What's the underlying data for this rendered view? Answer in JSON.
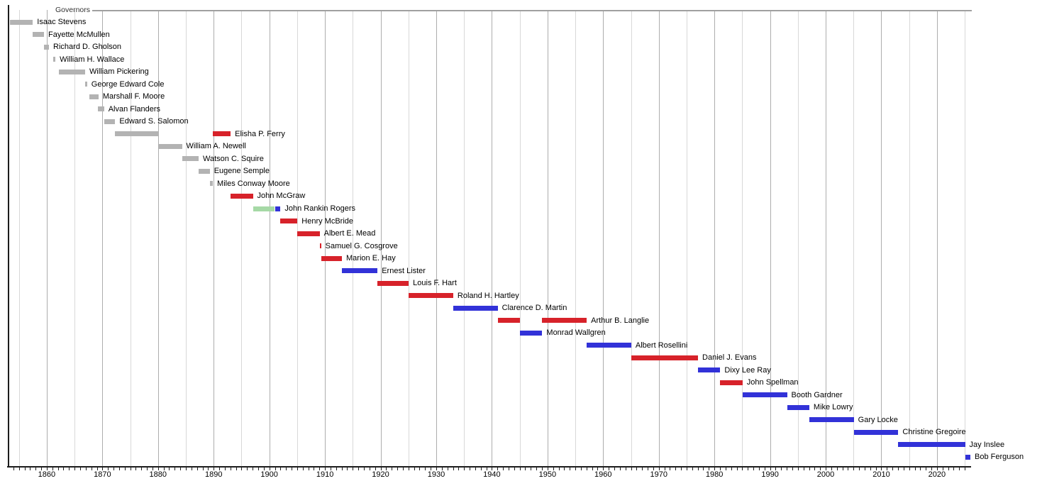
{
  "header": {
    "title": "Governors"
  },
  "chart_data": {
    "type": "timeline",
    "title": "Governors",
    "legend_position": "top-left",
    "grid": "on",
    "axis": {
      "orientation": "horizontal-time",
      "year_start": 1853,
      "year_end": 2026,
      "major_tick_interval": 10,
      "minor_tick_interval": 1,
      "gridline_interval": 5,
      "tick_labels": [
        "1860",
        "1870",
        "1880",
        "1890",
        "1900",
        "1910",
        "1920",
        "1930",
        "1940",
        "1950",
        "1960",
        "1970",
        "1980",
        "1990",
        "2000",
        "2010",
        "2020"
      ]
    },
    "colors": {
      "territorial": "#b3b3b3",
      "republican": "#d7222a",
      "democratic": "#3232d8",
      "populist": "#a6d9a6"
    },
    "governors": [
      {
        "name": "Isaac Stevens",
        "segments": [
          {
            "party": "territorial",
            "start": 1853.4,
            "end": 1857.5
          }
        ]
      },
      {
        "name": "Fayette McMullen",
        "segments": [
          {
            "party": "territorial",
            "start": 1857.5,
            "end": 1859.5
          }
        ]
      },
      {
        "name": "Richard D. Gholson",
        "segments": [
          {
            "party": "territorial",
            "start": 1859.5,
            "end": 1860.4
          }
        ]
      },
      {
        "name": "William H. Wallace",
        "segments": [
          {
            "party": "territorial",
            "start": 1861.15,
            "end": 1861.55
          }
        ]
      },
      {
        "name": "William Pickering",
        "segments": [
          {
            "party": "territorial",
            "start": 1862.2,
            "end": 1866.9
          }
        ]
      },
      {
        "name": "George Edward Cole",
        "segments": [
          {
            "party": "territorial",
            "start": 1866.9,
            "end": 1867.25
          }
        ]
      },
      {
        "name": "Marshall F. Moore",
        "segments": [
          {
            "party": "territorial",
            "start": 1867.6,
            "end": 1869.3
          }
        ]
      },
      {
        "name": "Alvan Flanders",
        "segments": [
          {
            "party": "territorial",
            "start": 1869.2,
            "end": 1870.3
          }
        ]
      },
      {
        "name": "Edward S. Salomon",
        "segments": [
          {
            "party": "territorial",
            "start": 1870.3,
            "end": 1872.3
          }
        ]
      },
      {
        "name": "Elisha P. Ferry",
        "segments": [
          {
            "party": "territorial",
            "start": 1872.3,
            "end": 1880.2
          },
          {
            "party": "republican",
            "start": 1889.85,
            "end": 1893.05
          }
        ]
      },
      {
        "name": "William A. Newell",
        "segments": [
          {
            "party": "territorial",
            "start": 1880.2,
            "end": 1884.3
          }
        ]
      },
      {
        "name": "Watson C. Squire",
        "segments": [
          {
            "party": "territorial",
            "start": 1884.3,
            "end": 1887.3
          }
        ]
      },
      {
        "name": "Eugene Semple",
        "segments": [
          {
            "party": "territorial",
            "start": 1887.3,
            "end": 1889.3
          }
        ]
      },
      {
        "name": "Miles Conway Moore",
        "segments": [
          {
            "party": "territorial",
            "start": 1889.3,
            "end": 1889.85
          }
        ]
      },
      {
        "name": "John McGraw",
        "segments": [
          {
            "party": "republican",
            "start": 1893.05,
            "end": 1897.05
          }
        ]
      },
      {
        "name": "John Rankin Rogers",
        "segments": [
          {
            "party": "populist",
            "start": 1897.05,
            "end": 1901.0
          },
          {
            "party": "democratic",
            "start": 1901.0,
            "end": 1902.0
          }
        ]
      },
      {
        "name": "Henry McBride",
        "segments": [
          {
            "party": "republican",
            "start": 1902.0,
            "end": 1905.05
          }
        ]
      },
      {
        "name": "Albert E. Mead",
        "segments": [
          {
            "party": "republican",
            "start": 1905.05,
            "end": 1909.05
          }
        ]
      },
      {
        "name": "Samuel G. Cosgrove",
        "segments": [
          {
            "party": "republican",
            "start": 1909.05,
            "end": 1909.3
          }
        ]
      },
      {
        "name": "Marion E. Hay",
        "segments": [
          {
            "party": "republican",
            "start": 1909.3,
            "end": 1913.05
          }
        ]
      },
      {
        "name": "Ernest Lister",
        "segments": [
          {
            "party": "democratic",
            "start": 1913.05,
            "end": 1919.45
          }
        ]
      },
      {
        "name": "Louis F. Hart",
        "segments": [
          {
            "party": "republican",
            "start": 1919.45,
            "end": 1925.05
          }
        ]
      },
      {
        "name": "Roland H. Hartley",
        "segments": [
          {
            "party": "republican",
            "start": 1925.05,
            "end": 1933.05
          }
        ]
      },
      {
        "name": "Clarence D. Martin",
        "segments": [
          {
            "party": "democratic",
            "start": 1933.05,
            "end": 1941.05
          }
        ]
      },
      {
        "name": "Arthur B. Langlie",
        "segments": [
          {
            "party": "republican",
            "start": 1941.05,
            "end": 1945.05
          },
          {
            "party": "republican",
            "start": 1949.05,
            "end": 1957.05
          }
        ]
      },
      {
        "name": "Monrad Wallgren",
        "segments": [
          {
            "party": "democratic",
            "start": 1945.05,
            "end": 1949.05
          }
        ]
      },
      {
        "name": "Albert Rosellini",
        "segments": [
          {
            "party": "democratic",
            "start": 1957.05,
            "end": 1965.05
          }
        ]
      },
      {
        "name": "Daniel J. Evans",
        "segments": [
          {
            "party": "republican",
            "start": 1965.05,
            "end": 1977.05
          }
        ]
      },
      {
        "name": "Dixy Lee Ray",
        "segments": [
          {
            "party": "democratic",
            "start": 1977.05,
            "end": 1981.05
          }
        ]
      },
      {
        "name": "John Spellman",
        "segments": [
          {
            "party": "republican",
            "start": 1981.05,
            "end": 1985.05
          }
        ]
      },
      {
        "name": "Booth Gardner",
        "segments": [
          {
            "party": "democratic",
            "start": 1985.05,
            "end": 1993.05
          }
        ]
      },
      {
        "name": "Mike Lowry",
        "segments": [
          {
            "party": "democratic",
            "start": 1993.05,
            "end": 1997.05
          }
        ]
      },
      {
        "name": "Gary Locke",
        "segments": [
          {
            "party": "democratic",
            "start": 1997.05,
            "end": 2005.05
          }
        ]
      },
      {
        "name": "Christine Gregoire",
        "segments": [
          {
            "party": "democratic",
            "start": 2005.05,
            "end": 2013.05
          }
        ]
      },
      {
        "name": "Jay Inslee",
        "segments": [
          {
            "party": "democratic",
            "start": 2013.05,
            "end": 2025.05
          }
        ]
      },
      {
        "name": "Bob Ferguson",
        "segments": [
          {
            "party": "democratic",
            "start": 2025.05,
            "end": 2026.0
          }
        ]
      }
    ]
  }
}
